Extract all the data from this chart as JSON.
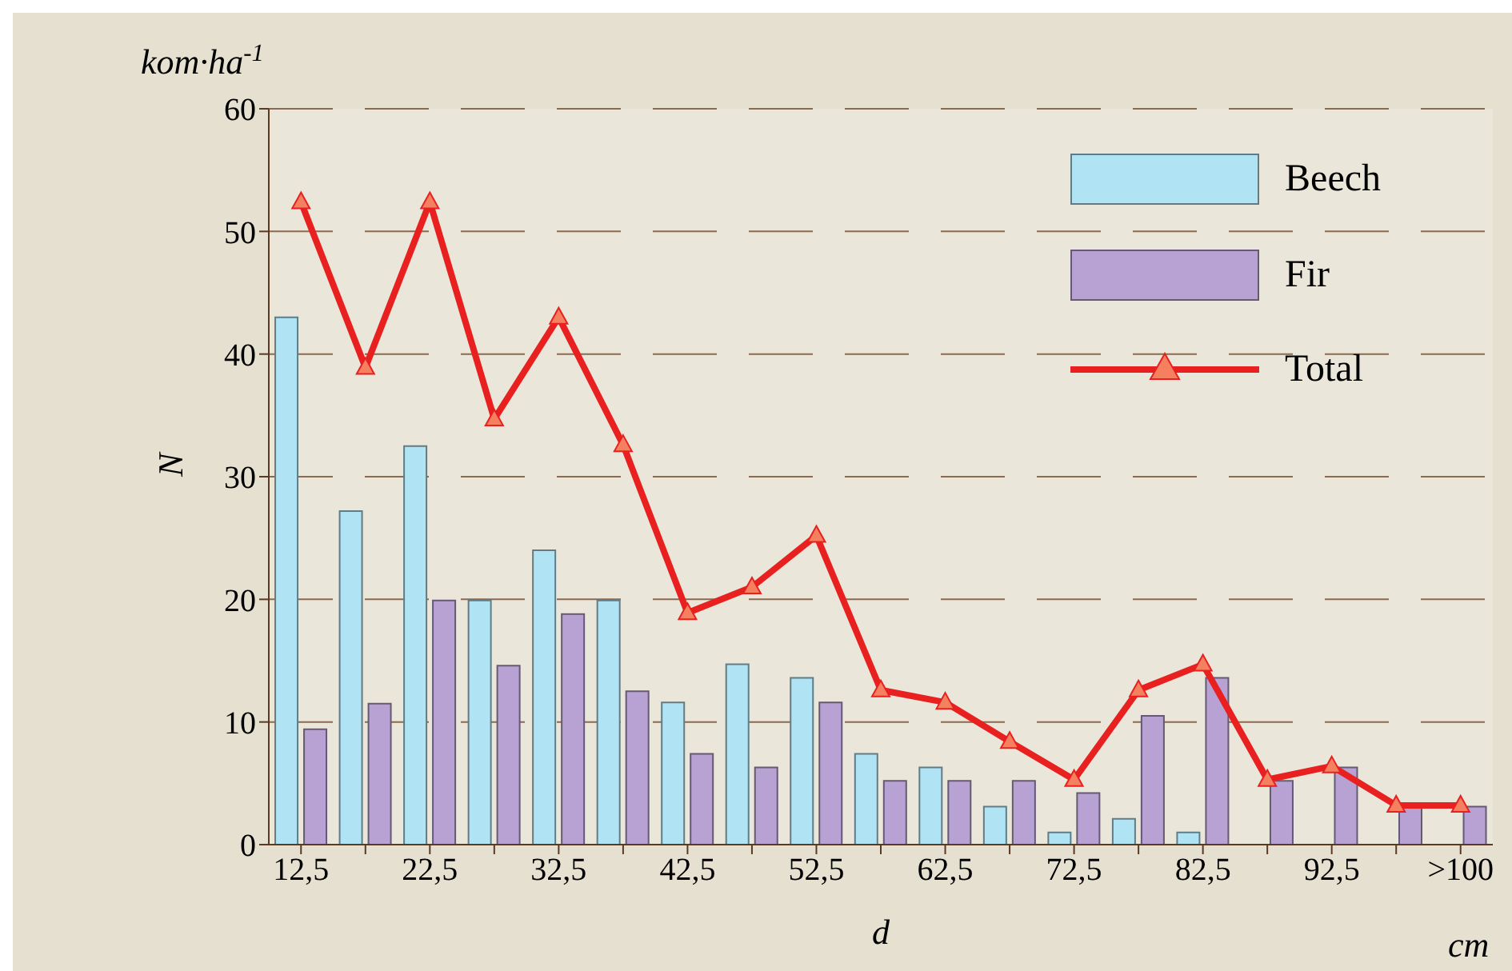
{
  "chart_data": {
    "type": "bar",
    "xlabel": "d",
    "ylabel": "N",
    "annotations": [
      "kom·ha$^{-1}$",
      "cm"
    ],
    "categories": [
      "12,5",
      null,
      "22,5",
      null,
      "32,5",
      null,
      "42,5",
      null,
      "52,5",
      null,
      "62,5",
      null,
      "72,5",
      null,
      "82,5",
      null,
      "92,5",
      null,
      ">100"
    ],
    "series": [
      {
        "name": "Beech",
        "color": "#b0e4f4",
        "values": [
          43,
          27.2,
          32.5,
          19.9,
          24,
          19.9,
          11.6,
          14.7,
          13.6,
          7.4,
          6.3,
          3.1,
          1,
          2.1,
          1,
          null,
          null,
          null,
          null
        ]
      },
      {
        "name": "Fir",
        "color": "#b8a2d4",
        "values": [
          9.4,
          11.5,
          19.9,
          14.6,
          18.8,
          12.5,
          7.4,
          6.3,
          11.6,
          5.2,
          5.2,
          5.2,
          4.2,
          10.5,
          13.6,
          5.2,
          6.3,
          3.1,
          3.1
        ]
      },
      {
        "name": "Total",
        "type": "line",
        "color": "#e82020",
        "values": [
          52.4,
          38.9,
          52.4,
          34.7,
          43,
          32.6,
          18.9,
          21,
          25.2,
          12.6,
          11.6,
          8.4,
          5.3,
          12.6,
          14.7,
          5.3,
          6.4,
          3.2,
          3.2
        ]
      }
    ],
    "ylim": [
      0,
      60
    ],
    "yticks": [
      0,
      10,
      20,
      30,
      40,
      50,
      60
    ],
    "grid": "y",
    "legend": "top right",
    "marker": "triangle"
  }
}
